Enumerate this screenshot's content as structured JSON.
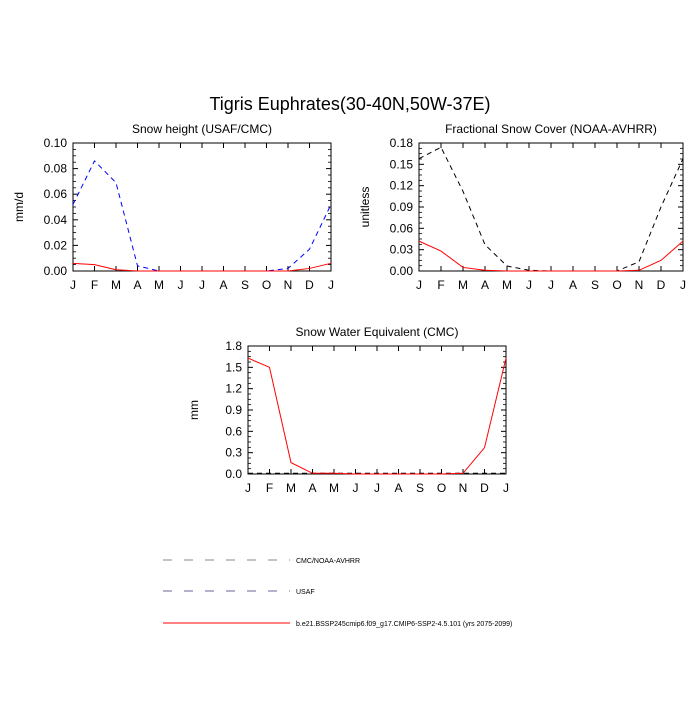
{
  "page_title": "Tigris Euphrates(30-40N,50W-37E)",
  "colors": {
    "model": "#ff0000",
    "usaf": "#0000ff",
    "obs": "#000000"
  },
  "chart_data": [
    {
      "type": "line",
      "title": "Snow height (USAF/CMC)",
      "ylabel": "mm/d",
      "xlabel": "",
      "categories": [
        "J",
        "F",
        "M",
        "A",
        "M",
        "J",
        "J",
        "A",
        "S",
        "O",
        "N",
        "D",
        "J"
      ],
      "ylim": [
        0,
        0.1
      ],
      "yticks": [
        "0.00",
        "0.02",
        "0.04",
        "0.06",
        "0.08",
        "0.10"
      ],
      "ytick_values": [
        0,
        0.02,
        0.04,
        0.06,
        0.08,
        0.1
      ],
      "grid": false,
      "series": [
        {
          "key": "usaf",
          "style": "dashed",
          "values": [
            0.052,
            0.086,
            0.069,
            0.004,
            0,
            0,
            0,
            0,
            0,
            0,
            0.002,
            0.017,
            0.052
          ]
        },
        {
          "key": "model",
          "style": "solid",
          "values": [
            0.006,
            0.005,
            0.001,
            0,
            0,
            0,
            0,
            0,
            0,
            0,
            0,
            0.002,
            0.006
          ]
        }
      ]
    },
    {
      "type": "line",
      "title": "Fractional Snow Cover (NOAA-AVHRR)",
      "ylabel": "unitless",
      "xlabel": "",
      "categories": [
        "J",
        "F",
        "M",
        "A",
        "M",
        "J",
        "J",
        "A",
        "S",
        "O",
        "N",
        "D",
        "J"
      ],
      "ylim": [
        0,
        0.18
      ],
      "yticks": [
        "0.00",
        "0.03",
        "0.06",
        "0.09",
        "0.12",
        "0.15",
        "0.18"
      ],
      "ytick_values": [
        0,
        0.03,
        0.06,
        0.09,
        0.12,
        0.15,
        0.18
      ],
      "grid": false,
      "series": [
        {
          "key": "obs",
          "style": "dashed",
          "values": [
            0.158,
            0.174,
            0.112,
            0.037,
            0.007,
            0.001,
            0,
            0,
            0,
            0,
            0.013,
            0.09,
            0.158
          ]
        },
        {
          "key": "model",
          "style": "solid",
          "values": [
            0.042,
            0.028,
            0.005,
            0.001,
            0,
            0,
            0,
            0,
            0,
            0,
            0.001,
            0.015,
            0.042
          ]
        }
      ]
    },
    {
      "type": "line",
      "title": "Snow Water Equivalent (CMC)",
      "ylabel": "mm",
      "xlabel": "",
      "categories": [
        "J",
        "F",
        "M",
        "A",
        "M",
        "J",
        "J",
        "A",
        "S",
        "O",
        "N",
        "D",
        "J"
      ],
      "ylim": [
        0,
        1.8
      ],
      "yticks": [
        "0.0",
        "0.3",
        "0.6",
        "0.9",
        "1.2",
        "1.5",
        "1.8"
      ],
      "ytick_values": [
        0,
        0.3,
        0.6,
        0.9,
        1.2,
        1.5,
        1.8
      ],
      "grid": false,
      "series": [
        {
          "key": "obs",
          "style": "dashed",
          "values": [
            0.01,
            0.01,
            0.01,
            0.01,
            0.01,
            0.01,
            0.01,
            0.01,
            0.01,
            0.01,
            0.01,
            0.01,
            0.01
          ]
        },
        {
          "key": "model",
          "style": "solid",
          "values": [
            1.63,
            1.5,
            0.16,
            0.01,
            0.01,
            0,
            0,
            0,
            0,
            0,
            0.01,
            0.37,
            1.63
          ]
        }
      ]
    }
  ],
  "legend": {
    "placement": "bottom-center",
    "items": [
      {
        "key": "obs",
        "style": "dashed",
        "color": "#888888",
        "label": "CMC/NOAA-AVHRR"
      },
      {
        "key": "usaf",
        "style": "dashed",
        "color": "#666699",
        "label": "USAF"
      },
      {
        "key": "model",
        "style": "solid",
        "color": "#ff0000",
        "label": "b.e21.BSSP245cmip6.f09_g17.CMIP6-SSP2-4.5.101 (yrs 2075-2099)"
      }
    ]
  }
}
